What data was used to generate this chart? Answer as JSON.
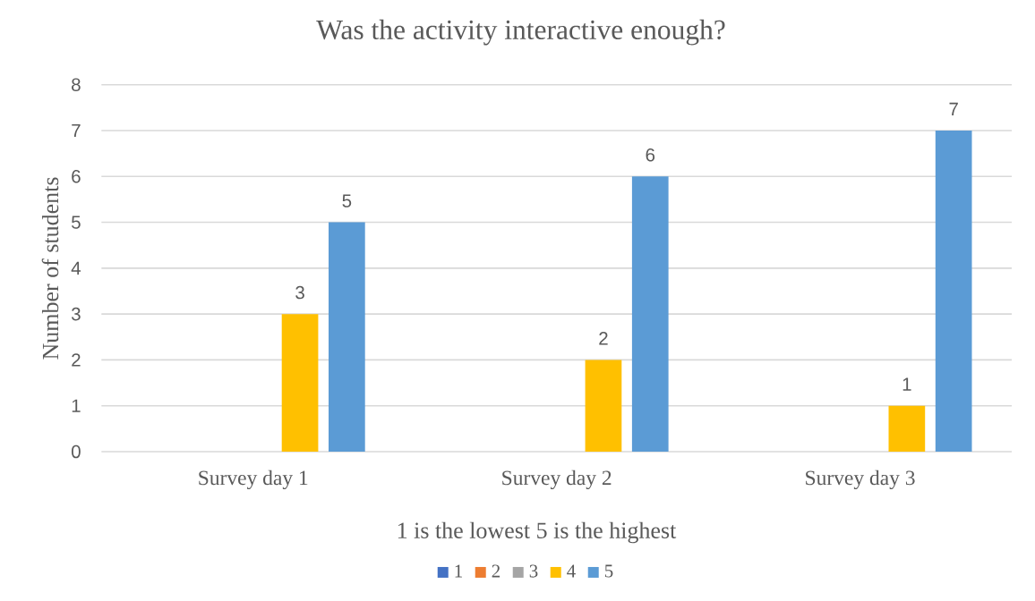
{
  "chart_data": {
    "type": "bar",
    "title": "Was the activity interactive enough?",
    "xlabel": "1 is the lowest 5 is the highest",
    "ylabel": "Number of students",
    "categories": [
      "Survey day 1",
      "Survey day 2",
      "Survey day  3"
    ],
    "series": [
      {
        "name": "1",
        "color": "#4472c4",
        "values": [
          null,
          null,
          null
        ]
      },
      {
        "name": "2",
        "color": "#ed7d31",
        "values": [
          null,
          null,
          null
        ]
      },
      {
        "name": "3",
        "color": "#a5a5a5",
        "values": [
          null,
          null,
          null
        ]
      },
      {
        "name": "4",
        "color": "#ffc000",
        "values": [
          3,
          2,
          1
        ]
      },
      {
        "name": "5",
        "color": "#5b9bd5",
        "values": [
          5,
          6,
          7
        ]
      }
    ],
    "ylim": [
      0,
      8
    ],
    "yticks": [
      0,
      1,
      2,
      3,
      4,
      5,
      6,
      7,
      8
    ],
    "grid": "y",
    "legend": "bottom",
    "data_labels": true
  }
}
